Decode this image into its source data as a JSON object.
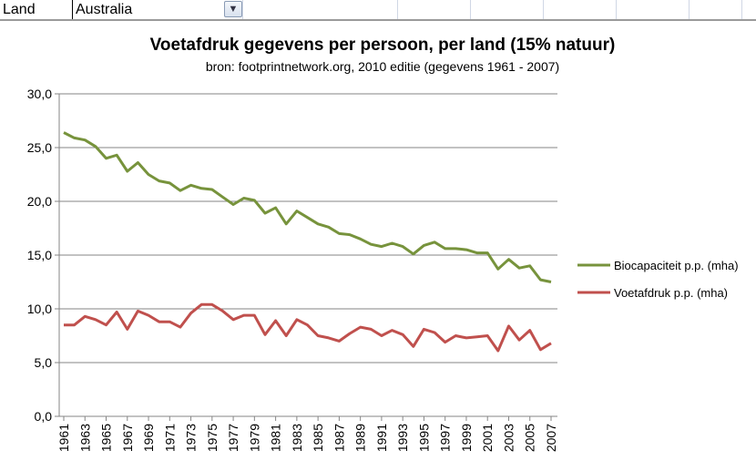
{
  "sheet": {
    "label_cell": "Land",
    "value_cell": "Australia",
    "filter_icon": "filter-dropdown-icon"
  },
  "chart_data": {
    "type": "line",
    "title": "Voetafdruk gegevens per persoon,  per land (15% natuur)",
    "subtitle": "bron: footprintnetwork.org, 2010 editie (gegevens 1961 - 2007)",
    "xlabel": "",
    "ylabel": "",
    "ylim": [
      0,
      30
    ],
    "yticks": [
      "0,0",
      "5,0",
      "10,0",
      "15,0",
      "20,0",
      "25,0",
      "30,0"
    ],
    "grid": true,
    "legend": "right",
    "x": [
      1961,
      1962,
      1963,
      1964,
      1965,
      1966,
      1967,
      1968,
      1969,
      1970,
      1971,
      1972,
      1973,
      1974,
      1975,
      1976,
      1977,
      1978,
      1979,
      1980,
      1981,
      1982,
      1983,
      1984,
      1985,
      1986,
      1987,
      1988,
      1989,
      1990,
      1991,
      1992,
      1993,
      1994,
      1995,
      1996,
      1997,
      1998,
      1999,
      2000,
      2001,
      2002,
      2003,
      2004,
      2005,
      2006,
      2007
    ],
    "xtick_labels": [
      "1961",
      "1963",
      "1965",
      "1967",
      "1969",
      "1971",
      "1973",
      "1975",
      "1977",
      "1979",
      "1981",
      "1983",
      "1985",
      "1987",
      "1989",
      "1991",
      "1993",
      "1995",
      "1997",
      "1999",
      "2001",
      "2003",
      "2005",
      "2007"
    ],
    "series": [
      {
        "name": "Biocapaciteit  p.p. (mha)",
        "color": "#77933c",
        "values": [
          26.4,
          25.9,
          25.7,
          25.1,
          24.0,
          24.3,
          22.8,
          23.6,
          22.5,
          21.9,
          21.7,
          21.0,
          21.5,
          21.2,
          21.1,
          20.4,
          19.7,
          20.3,
          20.1,
          18.9,
          19.4,
          17.9,
          19.1,
          18.5,
          17.9,
          17.6,
          17.0,
          16.9,
          16.5,
          16.0,
          15.8,
          16.1,
          15.8,
          15.1,
          15.9,
          16.2,
          15.6,
          15.6,
          15.5,
          15.2,
          15.2,
          13.7,
          14.6,
          13.8,
          14.0,
          12.7,
          12.5
        ]
      },
      {
        "name": "Voetafdruk p.p. (mha)",
        "color": "#c0504d",
        "values": [
          8.5,
          8.5,
          9.3,
          9.0,
          8.5,
          9.7,
          8.1,
          9.8,
          9.4,
          8.8,
          8.8,
          8.3,
          9.6,
          10.4,
          10.4,
          9.8,
          9.0,
          9.4,
          9.4,
          7.6,
          8.9,
          7.5,
          9.0,
          8.5,
          7.5,
          7.3,
          7.0,
          7.7,
          8.3,
          8.1,
          7.5,
          8.0,
          7.6,
          6.5,
          8.1,
          7.8,
          6.9,
          7.5,
          7.3,
          7.4,
          7.5,
          6.1,
          8.4,
          7.1,
          8.0,
          6.2,
          6.8
        ]
      }
    ]
  }
}
